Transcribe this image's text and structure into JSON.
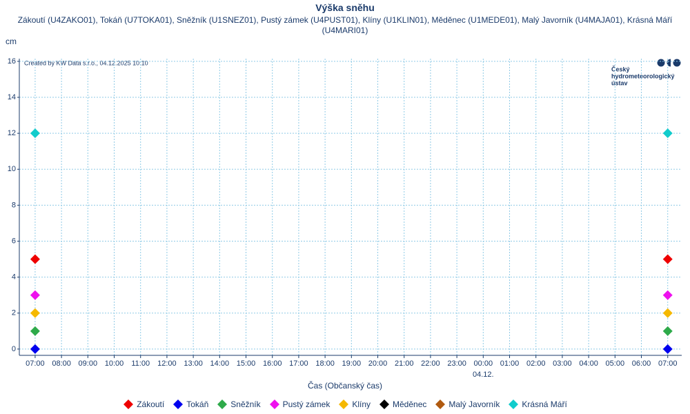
{
  "chart_data": {
    "type": "scatter",
    "title": "Výška sněhu",
    "subtitle": "Zákoutí (U4ZAKO01), Tokáň (U7TOKA01), Sněžník (U1SNEZ01), Pustý zámek (U4PUST01), Klíny (U1KLIN01), Měděnec (U1MEDE01), Malý Javorník (U4MAJA01), Krásná Máří (U4MARI01)",
    "y_label": "cm",
    "x_label": "Čas (Občanský čas)",
    "credit": "Created by KW Data s.r.o., 04.12.2025 10:10",
    "logo": [
      "Český",
      "hydrometeorologický",
      "ústav"
    ],
    "date_annotation": "04.12.",
    "categories": [
      "07:00",
      "08:00",
      "09:00",
      "10:00",
      "11:00",
      "12:00",
      "13:00",
      "14:00",
      "15:00",
      "16:00",
      "17:00",
      "18:00",
      "19:00",
      "20:00",
      "21:00",
      "22:00",
      "23:00",
      "00:00",
      "01:00",
      "02:00",
      "03:00",
      "04:00",
      "05:00",
      "06:00",
      "07:00"
    ],
    "series": [
      {
        "name": "Zákoutí",
        "color": "#ee0000",
        "values": [
          5,
          null,
          null,
          null,
          null,
          null,
          null,
          null,
          null,
          null,
          null,
          null,
          null,
          null,
          null,
          null,
          null,
          null,
          null,
          null,
          null,
          null,
          null,
          null,
          5
        ]
      },
      {
        "name": "Tokáň",
        "color": "#0000ee",
        "values": [
          0,
          null,
          null,
          null,
          null,
          null,
          null,
          null,
          null,
          null,
          null,
          null,
          null,
          null,
          null,
          null,
          null,
          null,
          null,
          null,
          null,
          null,
          null,
          null,
          0
        ]
      },
      {
        "name": "Sněžník",
        "color": "#2eaa4a",
        "values": [
          1,
          null,
          null,
          null,
          null,
          null,
          null,
          null,
          null,
          null,
          null,
          null,
          null,
          null,
          null,
          null,
          null,
          null,
          null,
          null,
          null,
          null,
          null,
          null,
          1
        ]
      },
      {
        "name": "Pustý zámek",
        "color": "#ee11ee",
        "values": [
          3,
          null,
          null,
          null,
          null,
          null,
          null,
          null,
          null,
          null,
          null,
          null,
          null,
          null,
          null,
          null,
          null,
          null,
          null,
          null,
          null,
          null,
          null,
          null,
          3
        ]
      },
      {
        "name": "Klíny",
        "color": "#f5b800",
        "values": [
          2,
          null,
          null,
          null,
          null,
          null,
          null,
          null,
          null,
          null,
          null,
          null,
          null,
          null,
          null,
          null,
          null,
          null,
          null,
          null,
          null,
          null,
          null,
          null,
          2
        ]
      },
      {
        "name": "Měděnec",
        "color": "#000000",
        "values": [
          null,
          null,
          null,
          null,
          null,
          null,
          null,
          null,
          null,
          null,
          null,
          null,
          null,
          null,
          null,
          null,
          null,
          null,
          null,
          null,
          null,
          null,
          null,
          null,
          null
        ]
      },
      {
        "name": "Malý Javorník",
        "color": "#b05a10",
        "values": [
          null,
          null,
          null,
          null,
          null,
          null,
          null,
          null,
          null,
          null,
          null,
          null,
          null,
          null,
          null,
          null,
          null,
          null,
          null,
          null,
          null,
          null,
          null,
          null,
          null
        ]
      },
      {
        "name": "Krásná Máří",
        "color": "#11cccc",
        "values": [
          12,
          null,
          null,
          null,
          null,
          null,
          null,
          null,
          null,
          null,
          null,
          null,
          null,
          null,
          null,
          null,
          null,
          null,
          null,
          null,
          null,
          null,
          null,
          null,
          12
        ]
      }
    ],
    "ylim": [
      -0.35,
      16.15
    ],
    "yticks": [
      0,
      2,
      4,
      6,
      8,
      10,
      12,
      14,
      16
    ],
    "grid": true
  }
}
